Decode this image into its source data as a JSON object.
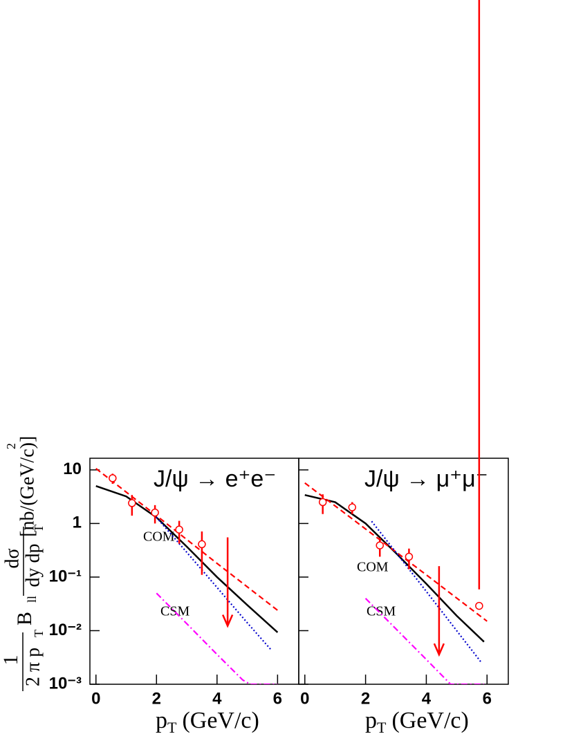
{
  "chart_data": [
    {
      "type": "line",
      "title": "J/ψ → e⁺e⁻",
      "xlabel": [
        "p",
        "T",
        "(GeV/c)"
      ],
      "ylabel": [
        "1",
        "2 π p",
        "T",
        "B",
        "ll",
        "dσ",
        "dy dp",
        "T",
        "[nb/(GeV/c)",
        "2",
        "]"
      ],
      "annotations": [
        "COM",
        "CSM"
      ],
      "xlim": [
        -0.2,
        6.7
      ],
      "xticks": [
        0,
        2,
        4,
        6
      ],
      "ylim": [
        0.001,
        16.5
      ],
      "log_y": true,
      "yticks": [
        10,
        1,
        {
          "value": 0.1,
          "label": "10⁻¹"
        },
        {
          "value": 0.01,
          "label": "10⁻²"
        },
        {
          "value": 0.001,
          "label": "10⁻³"
        }
      ],
      "series": [
        {
          "color": "#000000",
          "style": "solid",
          "x": [
            0,
            1,
            2,
            3,
            4,
            5,
            6
          ],
          "values": [
            5.0,
            3.2,
            1.3,
            0.37,
            0.1,
            0.03,
            0.0093
          ]
        },
        {
          "color": "#ff0000",
          "style": "dashed",
          "x": [
            0,
            2,
            4,
            6
          ],
          "values": [
            10.6,
            1.4,
            0.18,
            0.024
          ]
        },
        {
          "color": "#0000cc",
          "style": "dotted",
          "x": [
            2,
            3,
            4,
            5,
            5.8
          ],
          "values": [
            1.3,
            0.29,
            0.064,
            0.014,
            0.0043
          ]
        },
        {
          "color": "#ff00ff",
          "style": "dashdot",
          "x": [
            2,
            3,
            4,
            4.85,
            5.1,
            6
          ],
          "values": [
            0.05,
            0.0135,
            0.0036,
            0.0012,
            0.001,
            0.001
          ]
        }
      ],
      "data": {
        "color": "#ff0000",
        "x": [
          0.55,
          1.19,
          1.95,
          2.75,
          3.5
        ],
        "values": [
          7.0,
          2.4,
          1.6,
          0.77,
          0.41
        ],
        "errors": [
          1.5,
          1.0,
          0.6,
          0.35,
          0.3
        ]
      },
      "upper_limits": {
        "color": "#ff0000",
        "x": [
          4.35
        ],
        "values": [
          0.55
        ]
      }
    },
    {
      "type": "line",
      "title": "J/ψ → μ⁺μ⁻",
      "xlabel": [
        "p",
        "T",
        "(GeV/c)"
      ],
      "annotations": [
        "COM",
        "CSM"
      ],
      "xlim": [
        -0.2,
        6.7
      ],
      "xticks": [
        0,
        2,
        4,
        6
      ],
      "ylim": [
        0.001,
        16.5
      ],
      "log_y": true,
      "yticks": [
        10,
        1,
        0.1,
        0.01,
        0.001
      ],
      "series": [
        {
          "color": "#000000",
          "style": "solid",
          "x": [
            0,
            1,
            2,
            3,
            4,
            5,
            5.9
          ],
          "values": [
            3.4,
            2.5,
            1.0,
            0.28,
            0.075,
            0.019,
            0.0062
          ]
        },
        {
          "color": "#ff0000",
          "style": "dashed",
          "x": [
            0,
            2,
            4,
            6
          ],
          "values": [
            5.7,
            0.79,
            0.11,
            0.015
          ]
        },
        {
          "color": "#0000cc",
          "style": "dotted",
          "x": [
            2.2,
            3,
            4,
            5,
            5.8
          ],
          "values": [
            1.1,
            0.29,
            0.054,
            0.01,
            0.0026
          ]
        },
        {
          "color": "#ff00ff",
          "style": "dashdot",
          "x": [
            2,
            3,
            4,
            4.8,
            5.9
          ],
          "values": [
            0.04,
            0.0108,
            0.0029,
            0.001,
            0.001
          ]
        }
      ],
      "data": {
        "color": "#ff0000",
        "x": [
          0.59,
          1.56,
          2.47,
          3.43,
          5.74
        ],
        "values": [
          2.5,
          2.0,
          0.39,
          0.24,
          0.029
        ],
        "errors": [
          1.0,
          0.5,
          0.15,
          0.1,
          0.03
        ]
      },
      "upper_limits": {
        "color": "#ff0000",
        "x": [
          4.42
        ],
        "values": [
          0.16
        ]
      }
    }
  ]
}
